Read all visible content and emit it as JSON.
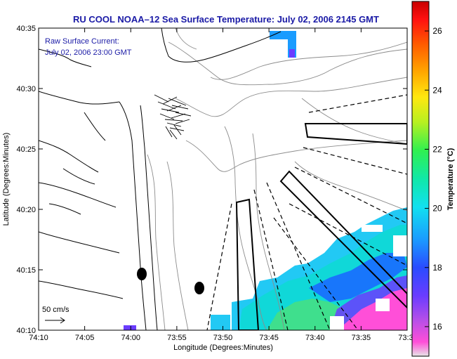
{
  "title": "RU COOL  NOAA–12  Sea Surface Temperature:  July 02, 2006 2145 GMT",
  "current_note": {
    "line1": "Raw Surface Current:",
    "line2": "July 02, 2006 23:00 GMT"
  },
  "axes": {
    "xlabel": "Longitude (Degrees:Minutes)",
    "ylabel": "Latitude (Degrees:Minutes)",
    "x_ticks": [
      "74:10",
      "74:05",
      "74:00",
      "73:55",
      "73:50",
      "73:45",
      "73:40",
      "73:35",
      "73:3"
    ],
    "y_ticks": [
      "40:35",
      "40:30",
      "40:25",
      "40:20",
      "40:15",
      "40:10"
    ]
  },
  "scale_bar": {
    "label": "50 cm/s"
  },
  "colorbar": {
    "label": "Temperature (°C)",
    "ticks": [
      "26",
      "24",
      "22",
      "20",
      "18",
      "16"
    ],
    "range": [
      15,
      27
    ],
    "tick_values": [
      26,
      24,
      22,
      20,
      18,
      16
    ]
  },
  "palette": {
    "title_color": "#1a1aa6",
    "frame": "#000000",
    "coast": "#000000",
    "bathymetry": "#8c8c8c"
  },
  "chart_data": {
    "type": "heatmap",
    "title": "RU COOL  NOAA–12  Sea Surface Temperature:  July 02, 2006 2145 GMT",
    "xlabel": "Longitude (Degrees:Minutes)",
    "ylabel": "Latitude (Degrees:Minutes)",
    "xlim": [
      "74:10",
      "73:30"
    ],
    "ylim": [
      "40:10",
      "40:35"
    ],
    "value_range": [
      15,
      27
    ],
    "value_unit": "°C",
    "markers": [
      {
        "lon": "73:59",
        "lat": "40:15",
        "shape": "ellipse"
      },
      {
        "lon": "73:52",
        "lat": "40:13",
        "shape": "ellipse"
      }
    ]
  }
}
